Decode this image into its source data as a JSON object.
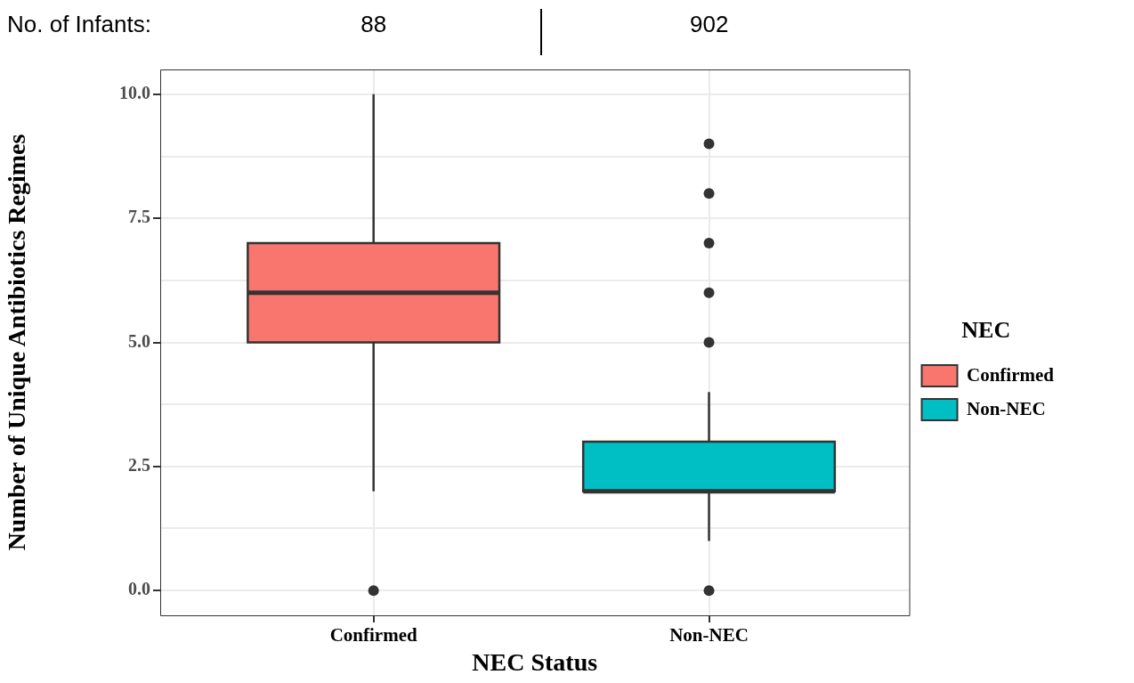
{
  "chart_data": {
    "type": "box",
    "xlabel": "NEC Status",
    "ylabel": "Number of Unique Antibiotics Regimes",
    "legend_title": "NEC",
    "legend": "right",
    "grid": true,
    "categories": [
      "Confirmed",
      "Non-NEC"
    ],
    "series": [
      {
        "name": "Confirmed",
        "color": "#f8766d",
        "boxes": [
          {
            "low": 2,
            "q1": 5,
            "median": 6,
            "q3": 7,
            "high": 10,
            "outliers": [
              0
            ]
          },
          null
        ]
      },
      {
        "name": "Non-NEC",
        "color": "#00bfc4",
        "boxes": [
          null,
          {
            "low": 1,
            "q1": 2,
            "median": 2,
            "q3": 3,
            "high": 4,
            "outliers": [
              0,
              5,
              6,
              7,
              8,
              9
            ]
          }
        ]
      }
    ],
    "ylim": [
      -0.5,
      10.5
    ],
    "yticks": [
      {
        "value": 0,
        "label": "0.0"
      },
      {
        "value": 1.25,
        "label": null
      },
      {
        "value": 2.5,
        "label": "2.5"
      },
      {
        "value": 3.75,
        "label": null
      },
      {
        "value": 5,
        "label": "5.0"
      },
      {
        "value": 6.25,
        "label": null
      },
      {
        "value": 7.5,
        "label": "7.5"
      },
      {
        "value": 8.75,
        "label": null
      },
      {
        "value": 10,
        "label": "10.0"
      }
    ],
    "annotations": [
      "No. of Infants:",
      "88",
      "902"
    ]
  }
}
